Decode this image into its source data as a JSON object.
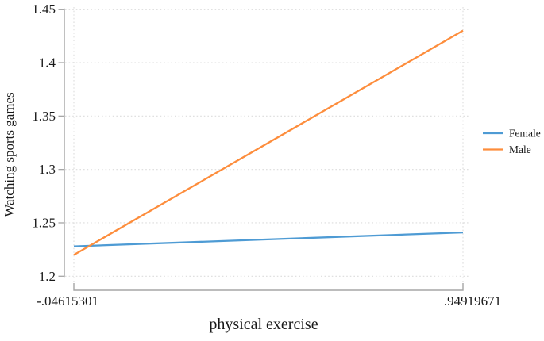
{
  "chart_data": {
    "type": "line",
    "title": "",
    "xlabel": "physical exercise",
    "ylabel": "Watching sports games",
    "xlim": [
      -0.04615301,
      0.94919671
    ],
    "ylim": [
      1.2,
      1.45
    ],
    "x": [
      -0.04615301,
      0.94919671
    ],
    "series": [
      {
        "name": "Female",
        "color": "#4e9bd4",
        "values": [
          1.228,
          1.241
        ]
      },
      {
        "name": "Male",
        "color": "#fd8d3c",
        "values": [
          1.22,
          1.43
        ]
      }
    ],
    "yticks": {
      "values": [
        1.2,
        1.25,
        1.3,
        1.35,
        1.4,
        1.45
      ],
      "labels": [
        "1.2",
        "1.25",
        "1.3",
        "1.35",
        "1.4",
        "1.45"
      ]
    },
    "xticks": {
      "values": [
        -0.04615301,
        0.94919671
      ],
      "labels": [
        "-.04615301",
        ".94919671"
      ]
    },
    "grid": "dotted horizontal lines at y ticks, dotted vertical lines at x ticks",
    "legend_position": "right outside plot, no border",
    "colors": {
      "axis": "#a6a6a6",
      "grid": "#dcdcdc",
      "text": "#1a1a1a",
      "background": "#ffffff"
    }
  }
}
